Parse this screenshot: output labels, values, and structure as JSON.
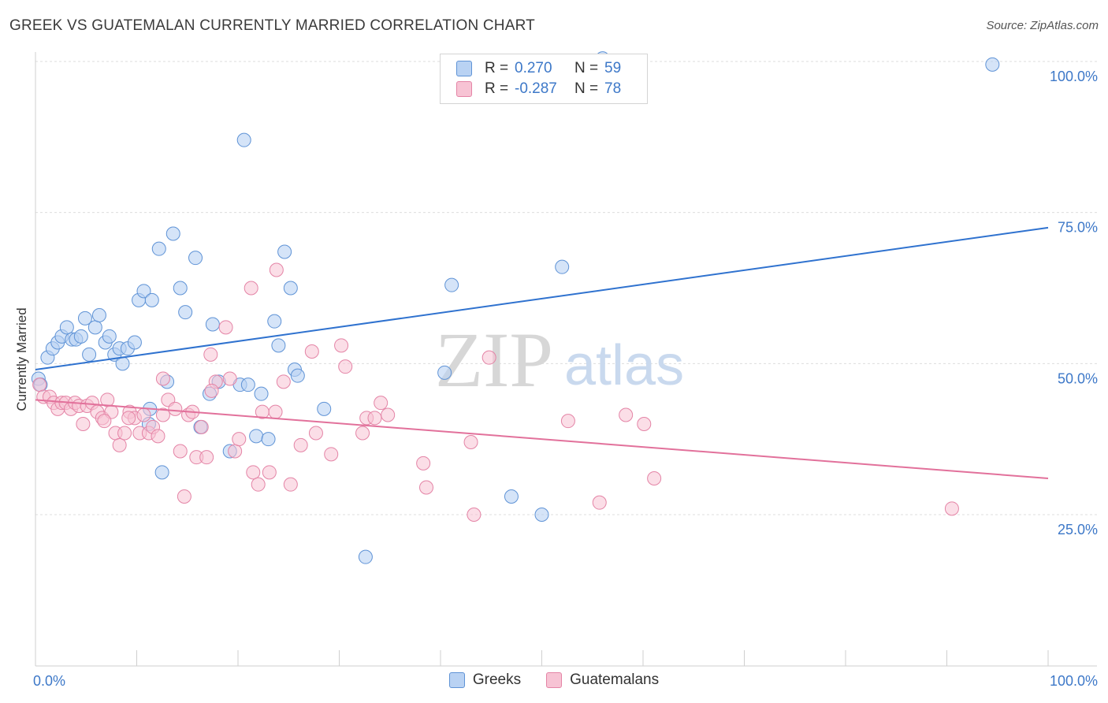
{
  "header": {
    "title": "GREEK VS GUATEMALAN CURRENTLY MARRIED CORRELATION CHART",
    "source": "Source: ZipAtlas.com"
  },
  "watermark": {
    "zip": "ZIP",
    "atlas": "atlas"
  },
  "colors": {
    "greeks_fill": "#b9d2f3",
    "greeks_stroke": "#5f93d6",
    "greeks_line": "#2f72cf",
    "guatemalans_fill": "#f7c3d4",
    "guatemalans_stroke": "#e484a6",
    "guatemalans_line": "#e2719b",
    "grid": "#dddddd",
    "tick_text": "#3d78c8"
  },
  "legend": {
    "rows": [
      {
        "r_label": "R =",
        "r_value": "0.270",
        "n_label": "N =",
        "n_value": "59"
      },
      {
        "r_label": "R =",
        "r_value": "-0.287",
        "n_label": "N =",
        "n_value": "78"
      }
    ]
  },
  "bottom_legend": {
    "greeks": "Greeks",
    "guatemalans": "Guatemalans"
  },
  "chart_data": {
    "type": "scatter",
    "title": "GREEK VS GUATEMALAN CURRENTLY MARRIED CORRELATION CHART",
    "xlabel": "",
    "ylabel": "Currently Married",
    "xlim": [
      0,
      100
    ],
    "ylim": [
      0,
      103
    ],
    "x_tick_labels": [
      "0.0%",
      "100.0%"
    ],
    "y_ticks": [
      25,
      50,
      75,
      100
    ],
    "y_tick_labels": [
      "25.0%",
      "50.0%",
      "75.0%",
      "100.0%"
    ],
    "grid": true,
    "legend_position": "top-center",
    "series": [
      {
        "name": "Greeks",
        "r": 0.27,
        "n": 59,
        "trend": {
          "x": [
            0,
            100
          ],
          "y": [
            49.0,
            72.5
          ]
        },
        "points": [
          [
            0.3,
            47.5
          ],
          [
            0.5,
            46.5
          ],
          [
            1.2,
            51
          ],
          [
            1.7,
            52.5
          ],
          [
            2.2,
            53.5
          ],
          [
            2.6,
            54.5
          ],
          [
            3.1,
            56
          ],
          [
            3.6,
            54
          ],
          [
            4.0,
            54
          ],
          [
            4.5,
            54.5
          ],
          [
            4.9,
            57.5
          ],
          [
            5.3,
            51.5
          ],
          [
            5.9,
            56
          ],
          [
            6.3,
            58
          ],
          [
            6.9,
            53.5
          ],
          [
            7.3,
            54.5
          ],
          [
            7.8,
            51.5
          ],
          [
            8.3,
            52.5
          ],
          [
            8.6,
            50
          ],
          [
            9.1,
            52.5
          ],
          [
            9.8,
            53.5
          ],
          [
            10.2,
            60.5
          ],
          [
            10.7,
            62
          ],
          [
            11.5,
            60.5
          ],
          [
            12.2,
            69
          ],
          [
            13.6,
            71.5
          ],
          [
            14.3,
            62.5
          ],
          [
            14.8,
            58.5
          ],
          [
            15.8,
            67.5
          ],
          [
            17.5,
            56.5
          ],
          [
            18.1,
            47
          ],
          [
            17.2,
            45
          ],
          [
            20.6,
            87
          ],
          [
            19.2,
            35.5
          ],
          [
            20.2,
            46.5
          ],
          [
            21.0,
            46.5
          ],
          [
            21.8,
            38
          ],
          [
            22.3,
            45
          ],
          [
            23.0,
            37.5
          ],
          [
            23.6,
            57
          ],
          [
            24.0,
            53
          ],
          [
            24.6,
            68.5
          ],
          [
            25.2,
            62.5
          ],
          [
            25.6,
            49
          ],
          [
            25.9,
            48
          ],
          [
            28.5,
            42.5
          ],
          [
            12.5,
            32
          ],
          [
            11.3,
            42.5
          ],
          [
            13.0,
            47
          ],
          [
            11.2,
            40
          ],
          [
            16.3,
            39.5
          ],
          [
            32.6,
            18
          ],
          [
            40.4,
            48.5
          ],
          [
            41.1,
            63
          ],
          [
            47.0,
            28
          ],
          [
            50.0,
            25
          ],
          [
            52.0,
            66
          ],
          [
            94.5,
            99.5
          ],
          [
            56.0,
            100.5
          ]
        ]
      },
      {
        "name": "Guatemalans",
        "r": -0.287,
        "n": 78,
        "trend": {
          "x": [
            0,
            100
          ],
          "y": [
            44.0,
            31.0
          ]
        },
        "points": [
          [
            0.4,
            46.5
          ],
          [
            0.8,
            44.5
          ],
          [
            1.4,
            44.5
          ],
          [
            1.8,
            43.5
          ],
          [
            2.2,
            42.5
          ],
          [
            2.6,
            43.5
          ],
          [
            3.0,
            43.5
          ],
          [
            3.5,
            42.5
          ],
          [
            3.9,
            43.5
          ],
          [
            4.3,
            43
          ],
          [
            4.7,
            40
          ],
          [
            5.1,
            43
          ],
          [
            5.6,
            43.5
          ],
          [
            6.1,
            42
          ],
          [
            6.6,
            41
          ],
          [
            7.1,
            44
          ],
          [
            7.5,
            42
          ],
          [
            7.9,
            38.5
          ],
          [
            8.3,
            36.5
          ],
          [
            8.8,
            38.5
          ],
          [
            9.3,
            42
          ],
          [
            9.8,
            41
          ],
          [
            10.3,
            38.5
          ],
          [
            10.7,
            41.5
          ],
          [
            11.2,
            38.5
          ],
          [
            11.6,
            39.5
          ],
          [
            12.1,
            38
          ],
          [
            12.6,
            41.5
          ],
          [
            13.1,
            44
          ],
          [
            13.8,
            42.5
          ],
          [
            14.3,
            35.5
          ],
          [
            14.7,
            28
          ],
          [
            15.1,
            41.5
          ],
          [
            15.5,
            42
          ],
          [
            15.9,
            34.5
          ],
          [
            16.4,
            39.5
          ],
          [
            16.9,
            34.5
          ],
          [
            17.3,
            51.5
          ],
          [
            17.8,
            47
          ],
          [
            18.8,
            56
          ],
          [
            19.2,
            47.5
          ],
          [
            19.7,
            35.5
          ],
          [
            20.1,
            37.5
          ],
          [
            21.5,
            32
          ],
          [
            22.0,
            30
          ],
          [
            22.4,
            42
          ],
          [
            23.1,
            32
          ],
          [
            23.7,
            42
          ],
          [
            24.5,
            47
          ],
          [
            25.2,
            30
          ],
          [
            26.2,
            36.5
          ],
          [
            27.3,
            52
          ],
          [
            27.7,
            38.5
          ],
          [
            29.2,
            35
          ],
          [
            30.2,
            53
          ],
          [
            30.6,
            49.5
          ],
          [
            32.3,
            38.5
          ],
          [
            32.7,
            41
          ],
          [
            33.5,
            41
          ],
          [
            34.1,
            43.5
          ],
          [
            34.8,
            41.5
          ],
          [
            38.3,
            33.5
          ],
          [
            38.6,
            29.5
          ],
          [
            43.0,
            37
          ],
          [
            43.3,
            25
          ],
          [
            44.8,
            51
          ],
          [
            52.6,
            40.5
          ],
          [
            55.7,
            27
          ],
          [
            58.3,
            41.5
          ],
          [
            60.1,
            40
          ],
          [
            61.1,
            31
          ],
          [
            90.5,
            26
          ],
          [
            21.3,
            62.5
          ],
          [
            23.8,
            65.5
          ],
          [
            17.4,
            45.5
          ],
          [
            12.6,
            47.5
          ],
          [
            9.2,
            41
          ],
          [
            6.8,
            40.5
          ]
        ]
      }
    ]
  }
}
